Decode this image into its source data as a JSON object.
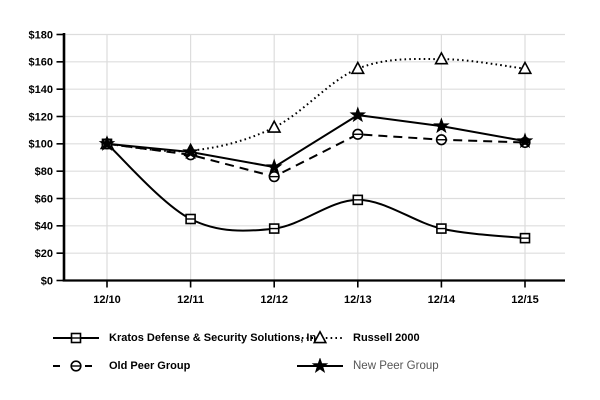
{
  "chart_data": {
    "type": "line",
    "categories": [
      "12/10",
      "12/11",
      "12/12",
      "12/13",
      "12/14",
      "12/15"
    ],
    "y_axis": {
      "min": 0,
      "max": 180,
      "step": 20,
      "tick_labels": [
        "$0",
        "$20",
        "$40",
        "$60",
        "$80",
        "$100",
        "$120",
        "$140",
        "$160",
        "$180"
      ]
    },
    "grid": true,
    "legend_position": "bottom",
    "series": [
      {
        "name": "Kratos Defense & Security Solutions, Inc",
        "marker": "square",
        "line": "solid",
        "curve": "smooth",
        "color": "#000000",
        "values": [
          100,
          45,
          38,
          59,
          38,
          31
        ]
      },
      {
        "name": "Russell 2000",
        "marker": "triangle",
        "line": "dotted",
        "curve": "smooth",
        "color": "#000000",
        "values": [
          100,
          95,
          112,
          155,
          162,
          155
        ]
      },
      {
        "name": "Old Peer Group",
        "marker": "circle-theta",
        "line": "dashed",
        "curve": "straight",
        "color": "#000000",
        "values": [
          100,
          92,
          76,
          107,
          103,
          101
        ]
      },
      {
        "name": "New Peer Group",
        "marker": "star",
        "line": "solid",
        "curve": "straight",
        "color": "#000000",
        "values": [
          100,
          94,
          83,
          121,
          113,
          102
        ],
        "muted_label": true
      }
    ],
    "colors": {
      "grid": "#dddddd",
      "axis": "#000000",
      "text": "#000000",
      "muted_label": "#555555"
    }
  }
}
